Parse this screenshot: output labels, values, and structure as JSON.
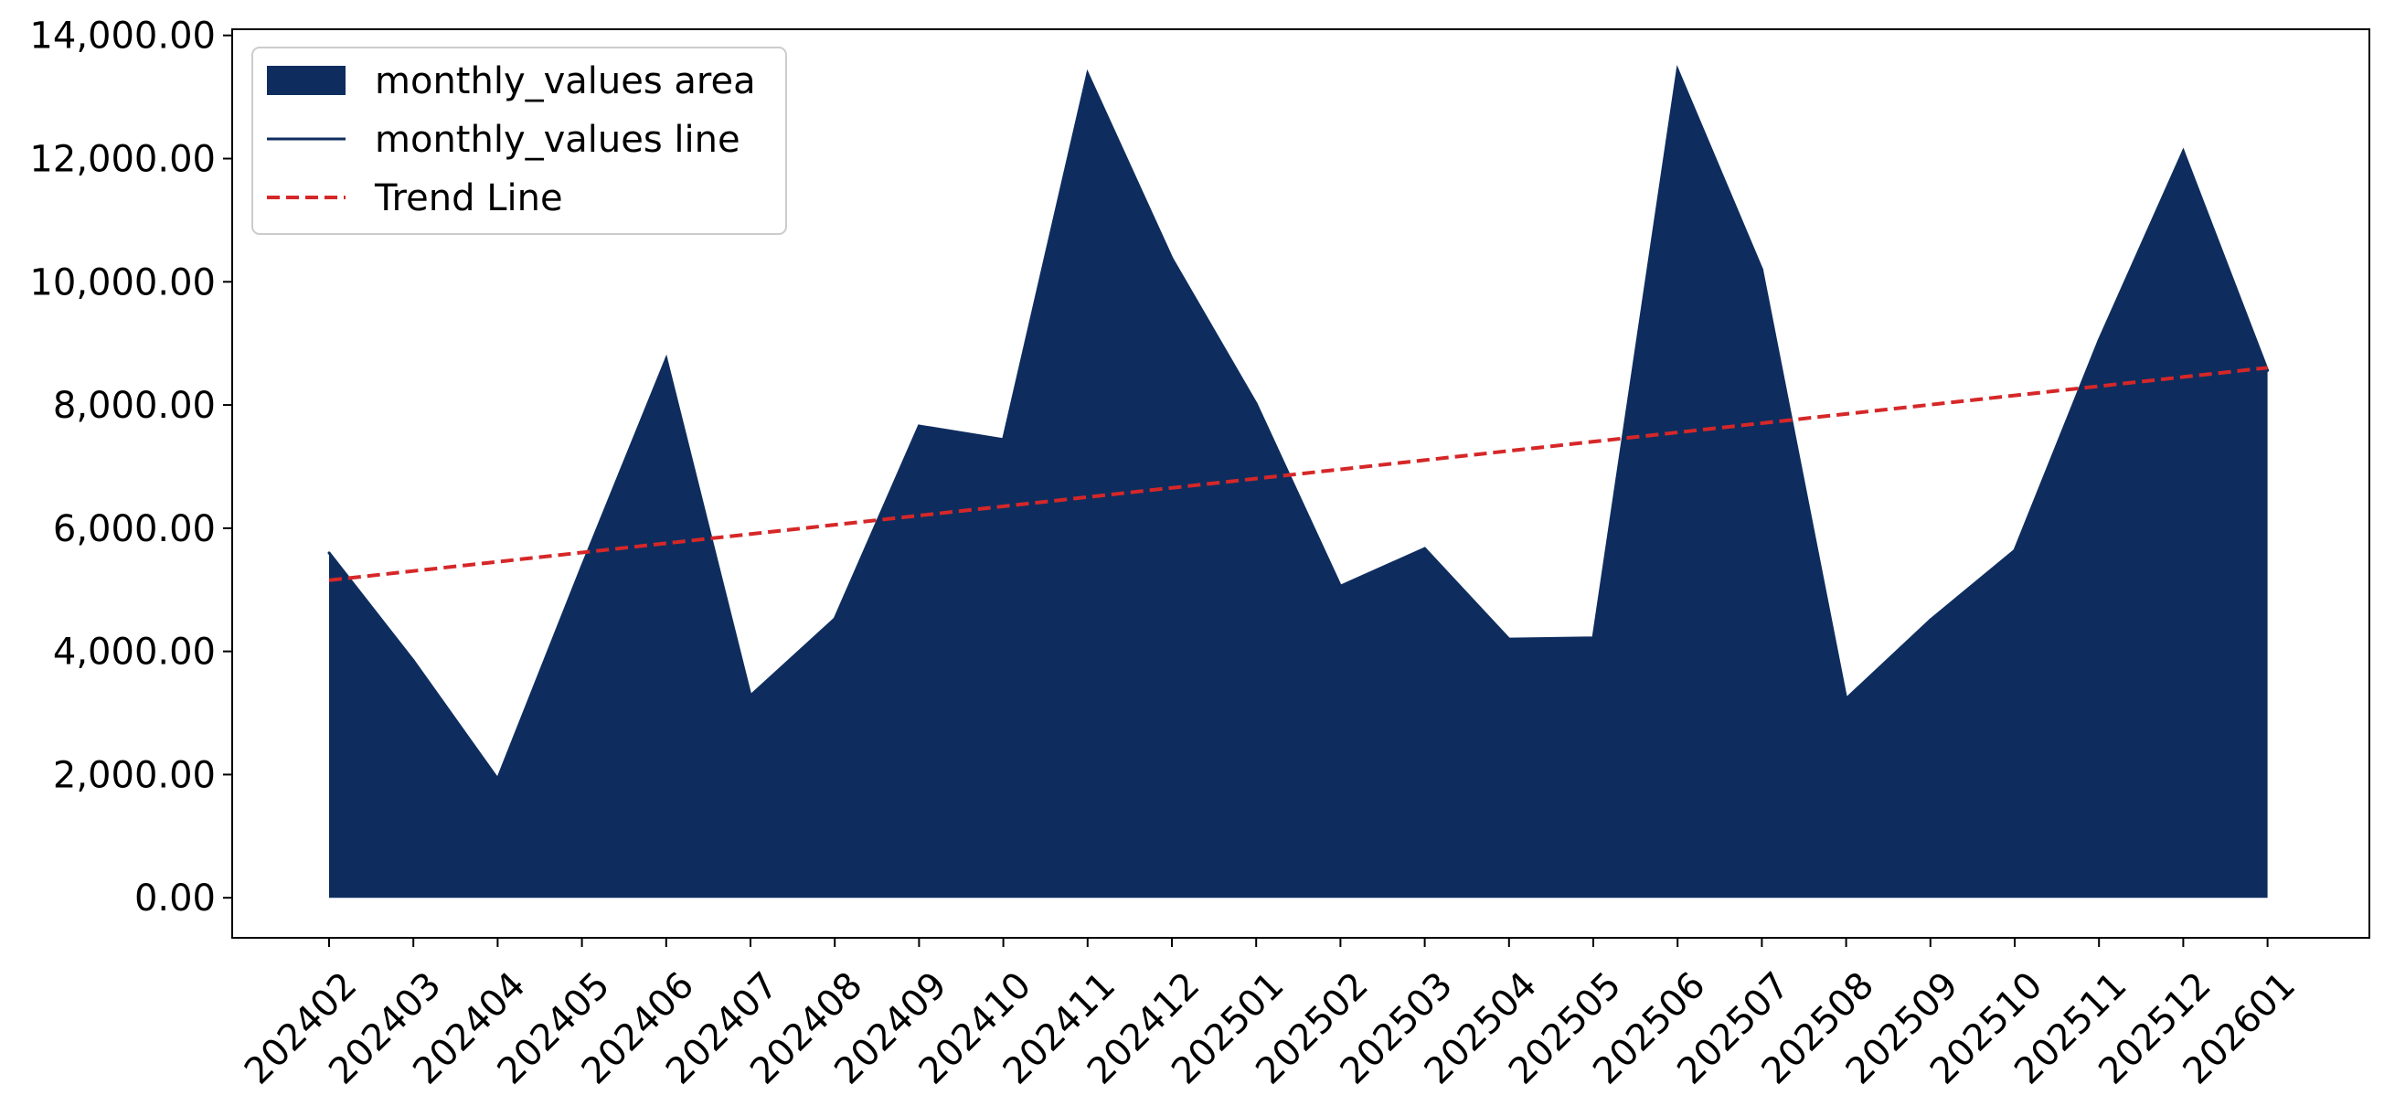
{
  "chart_data": {
    "type": "area",
    "title": "",
    "xlabel": "",
    "ylabel": "",
    "categories": [
      "202402",
      "202403",
      "202404",
      "202405",
      "202406",
      "202407",
      "202408",
      "202409",
      "202410",
      "202411",
      "202412",
      "202501",
      "202502",
      "202503",
      "202504",
      "202505",
      "202506",
      "202507",
      "202508",
      "202509",
      "202510",
      "202511",
      "202512",
      "202601"
    ],
    "series": [
      {
        "name": "monthly_values area",
        "kind": "area",
        "color": "#0e2d5e",
        "values": [
          5600,
          3850,
          1930,
          5380,
          8750,
          3280,
          4530,
          7660,
          7440,
          13380,
          10380,
          8020,
          5060,
          5670,
          4200,
          4220,
          13440,
          10200,
          3230,
          4510,
          5640,
          9050,
          12120,
          8560
        ]
      },
      {
        "name": "monthly_values line",
        "kind": "line",
        "color": "#0e2d5e",
        "values": [
          5600,
          3850,
          1930,
          5380,
          8750,
          3280,
          4530,
          7660,
          7440,
          13380,
          10380,
          8020,
          5060,
          5670,
          4200,
          4220,
          13440,
          10200,
          3230,
          4510,
          5640,
          9050,
          12120,
          8560
        ]
      },
      {
        "name": "Trend Line",
        "kind": "trend",
        "color": "#d62728",
        "values": [
          5155,
          5305,
          5455,
          5605,
          5755,
          5905,
          6055,
          6205,
          6355,
          6505,
          6655,
          6805,
          6955,
          7105,
          7255,
          7405,
          7555,
          7705,
          7855,
          8005,
          8155,
          8305,
          8455,
          8605
        ]
      }
    ],
    "yticks": [
      "0.00",
      "2,000.00",
      "4,000.00",
      "6,000.00",
      "8,000.00",
      "10,000.00",
      "12,000.00",
      "14,000.00"
    ],
    "ytick_values": [
      0,
      2000,
      4000,
      6000,
      8000,
      10000,
      12000,
      14000
    ],
    "ylim": [
      -650,
      14100
    ],
    "grid": false,
    "legend_position": "top-left"
  }
}
